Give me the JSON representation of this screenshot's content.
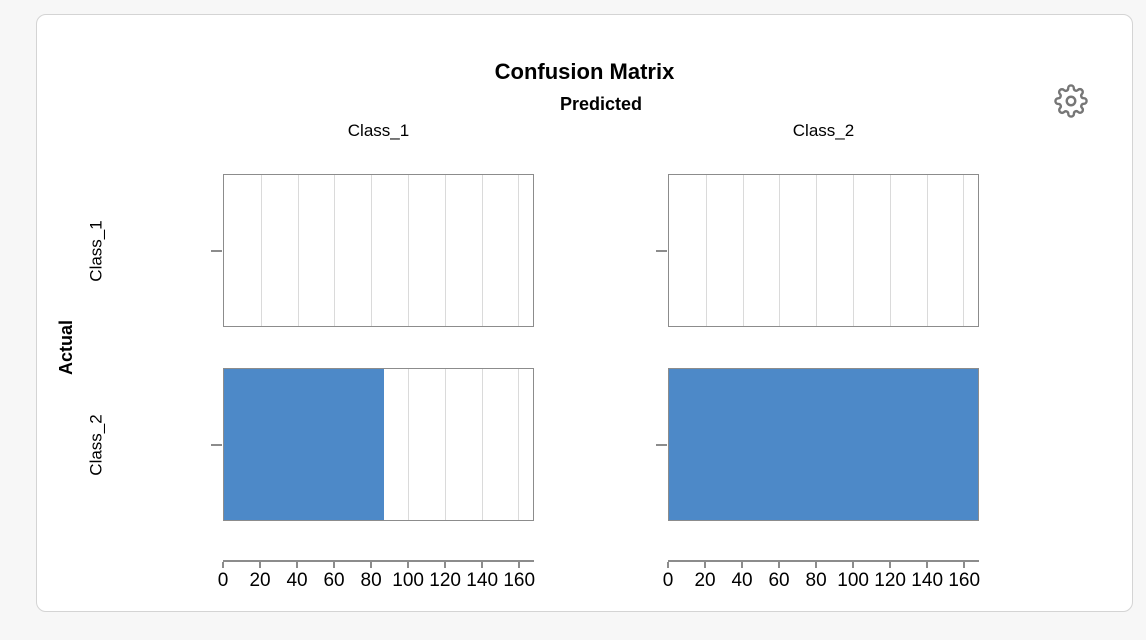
{
  "page": {
    "background": "#f7f7f7"
  },
  "card": {
    "background": "#ffffff",
    "border_color": "#d4d4d4"
  },
  "header": {
    "title": "Confusion Matrix",
    "predicted_label": "Predicted",
    "actual_label": "Actual",
    "settings_icon": "gear-icon"
  },
  "chart_data": {
    "type": "bar",
    "orientation": "horizontal",
    "layout": "faceted-2x2-small-multiples",
    "title": "Confusion Matrix",
    "col_axis_title": "Predicted",
    "row_axis_title": "Actual",
    "facet_columns": [
      "Class_1",
      "Class_2"
    ],
    "facet_rows": [
      "Class_1",
      "Class_2"
    ],
    "values": [
      [
        0,
        0
      ],
      [
        87,
        168
      ]
    ],
    "x_ticks": [
      0,
      20,
      40,
      60,
      80,
      100,
      120,
      140,
      160
    ],
    "x_max": 168,
    "grid": true,
    "bar_color": "#4d89c8",
    "gridline_color": "#dadada",
    "panel_border_color": "#8c8c8c"
  }
}
